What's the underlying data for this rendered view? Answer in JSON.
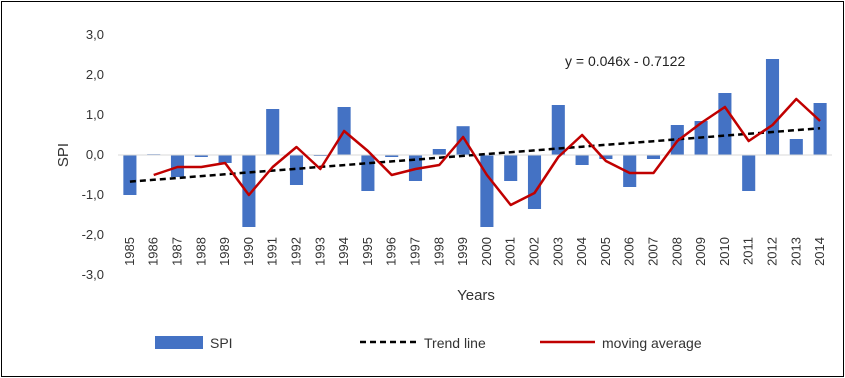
{
  "chart_data": {
    "type": "bar",
    "title": "",
    "xlabel": "Years",
    "ylabel": "SPI",
    "ylim": [
      -3.0,
      3.0
    ],
    "yticks": [
      "3,0",
      "2,0",
      "1,0",
      "0,0",
      "-1,0",
      "-2,0",
      "-3,0"
    ],
    "ytick_values": [
      3,
      2,
      1,
      0,
      -1,
      -2,
      -3
    ],
    "categories": [
      "1985",
      "1986",
      "1987",
      "1988",
      "1989",
      "1990",
      "1991",
      "1992",
      "1993",
      "1994",
      "1995",
      "1996",
      "1997",
      "1998",
      "1999",
      "2000",
      "2001",
      "2002",
      "2003",
      "2004",
      "2005",
      "2006",
      "2007",
      "2008",
      "2009",
      "2010",
      "2011",
      "2012",
      "2013",
      "2014"
    ],
    "series": [
      {
        "name": "SPI",
        "kind": "bar",
        "color": "#4472C4",
        "values": [
          -1.0,
          0.02,
          -0.55,
          -0.05,
          -0.2,
          -1.8,
          1.15,
          -0.75,
          0.0,
          1.2,
          -0.9,
          -0.05,
          -0.65,
          0.15,
          0.72,
          -1.8,
          -0.65,
          -1.35,
          1.25,
          -0.25,
          -0.1,
          -0.8,
          -0.1,
          0.75,
          0.85,
          1.55,
          -0.9,
          2.4,
          0.4,
          1.3
        ]
      },
      {
        "name": "Trend line",
        "kind": "dashed-line",
        "color": "#000000",
        "values": [
          -0.666,
          -0.62,
          -0.574,
          -0.528,
          -0.482,
          -0.436,
          -0.39,
          -0.344,
          -0.298,
          -0.252,
          -0.206,
          -0.16,
          -0.114,
          -0.068,
          -0.022,
          0.024,
          0.07,
          0.116,
          0.162,
          0.208,
          0.254,
          0.3,
          0.346,
          0.392,
          0.438,
          0.484,
          0.53,
          0.576,
          0.622,
          0.668
        ]
      },
      {
        "name": "moving average",
        "kind": "line",
        "color": "#C00000",
        "values": [
          null,
          -0.5,
          -0.3,
          -0.3,
          -0.2,
          -1.0,
          -0.3,
          0.2,
          -0.35,
          0.6,
          0.1,
          -0.5,
          -0.35,
          -0.25,
          0.45,
          -0.5,
          -1.25,
          -0.95,
          -0.05,
          0.5,
          -0.15,
          -0.45,
          -0.45,
          0.35,
          0.8,
          1.2,
          0.35,
          0.75,
          1.4,
          0.85
        ]
      }
    ],
    "annotation": "y = 0.046x - 0.7122",
    "legend": [
      "SPI",
      "Trend line",
      "moving average"
    ],
    "legend_position": "bottom",
    "grid": false
  }
}
